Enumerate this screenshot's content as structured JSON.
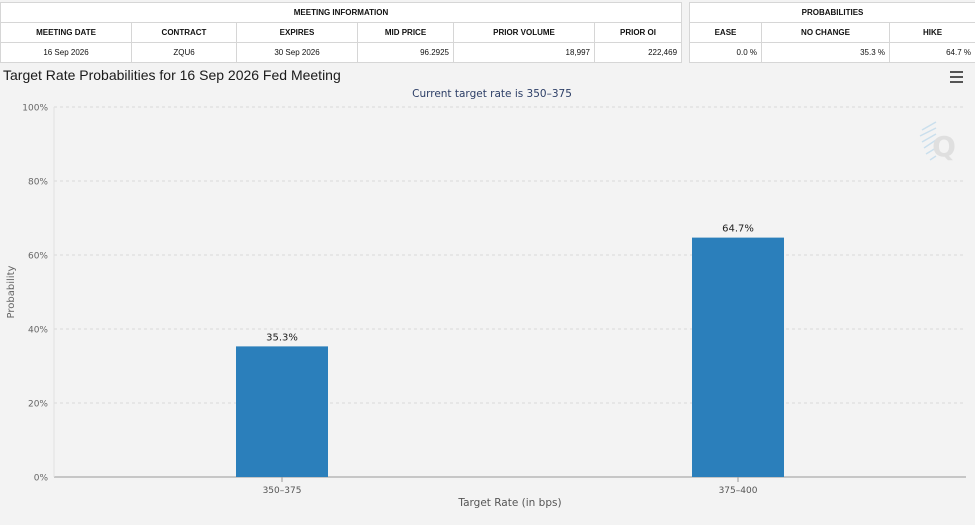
{
  "meeting_info": {
    "section_title": "MEETING INFORMATION",
    "headers": [
      "MEETING DATE",
      "CONTRACT",
      "EXPIRES",
      "MID PRICE",
      "PRIOR VOLUME",
      "PRIOR OI"
    ],
    "row": [
      "16 Sep 2026",
      "ZQU6",
      "30 Sep 2026",
      "96.2925",
      "18,997",
      "222,469"
    ]
  },
  "probabilities": {
    "section_title": "PROBABILITIES",
    "headers": [
      "EASE",
      "NO CHANGE",
      "HIKE"
    ],
    "row": [
      "0.0 %",
      "35.3 %",
      "64.7 %"
    ]
  },
  "chart_title": "Target Rate Probabilities for 16 Sep 2026 Fed Meeting",
  "menu_icon": "hamburger-menu-icon",
  "watermark_icon": "q-logo-icon",
  "chart_data": {
    "type": "bar",
    "title": "Current target rate is 350–375",
    "categories": [
      "350-375",
      "375-400"
    ],
    "values": [
      35.3,
      64.7
    ],
    "data_labels": [
      "35.3%",
      "64.7%"
    ],
    "xlabel": "Target Rate (in bps)",
    "ylabel": "Probability",
    "ylim": [
      0,
      100
    ],
    "yticks": [
      0,
      20,
      40,
      60,
      80,
      100
    ],
    "ytick_labels": [
      "0%",
      "20%",
      "40%",
      "60%",
      "80%",
      "100%"
    ],
    "grid": true,
    "bar_color": "#2b7fbb",
    "title_color": "#2c3e66"
  }
}
